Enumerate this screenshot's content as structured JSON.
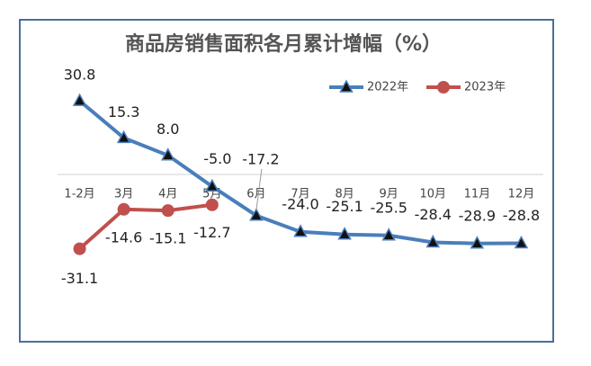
{
  "chart_data": {
    "type": "line",
    "title": "商品房销售面积各月累计增幅（%）",
    "categories": [
      "1-2月",
      "3月",
      "4月",
      "5月",
      "6月",
      "7月",
      "8月",
      "9月",
      "10月",
      "11月",
      "12月"
    ],
    "series": [
      {
        "name": "2022年",
        "color": "#4a7ebb",
        "values": [
          30.8,
          15.3,
          8.0,
          -5.0,
          -17.2,
          -24.0,
          -25.1,
          -25.5,
          -28.4,
          -28.9,
          -28.8
        ],
        "value_labels": [
          "30.8",
          "15.3",
          "8.0",
          "-5.0",
          "-17.2",
          "-24.0",
          "-25.1",
          "-25.5",
          "-28.4",
          "-28.9",
          "-28.8"
        ]
      },
      {
        "name": "2023年",
        "color": "#c0504d",
        "values": [
          -31.1,
          -14.6,
          -15.1,
          -12.7,
          null,
          null,
          null,
          null,
          null,
          null,
          null
        ],
        "value_labels": [
          "-31.1",
          "-14.6",
          "-15.1",
          "-12.7",
          null,
          null,
          null,
          null,
          null,
          null,
          null
        ]
      }
    ],
    "ylim": [
      -35,
      35
    ]
  }
}
